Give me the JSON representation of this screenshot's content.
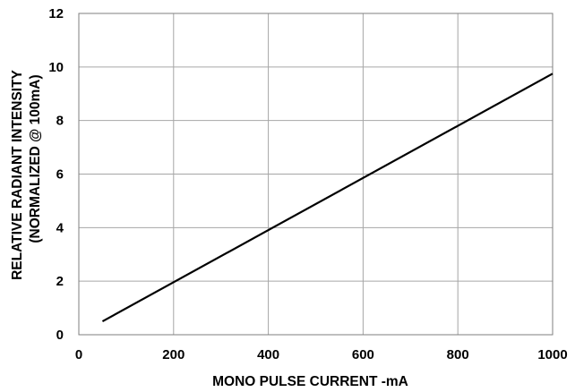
{
  "chart_data": {
    "type": "line",
    "xlabel": "MONO PULSE CURRENT -mA",
    "ylabel_lines": [
      "RELATIVE RADIANT INTENSITY",
      "(NORMALIZED @ 100mA)"
    ],
    "xlim": [
      0,
      1000
    ],
    "ylim": [
      0,
      12
    ],
    "x_ticks": [
      0,
      200,
      400,
      600,
      800,
      1000
    ],
    "y_ticks": [
      0,
      2,
      4,
      6,
      8,
      10,
      12
    ],
    "grid": true,
    "series": [
      {
        "x": [
          50,
          1000
        ],
        "y": [
          0.5,
          9.75
        ],
        "color": "#000000"
      }
    ]
  }
}
